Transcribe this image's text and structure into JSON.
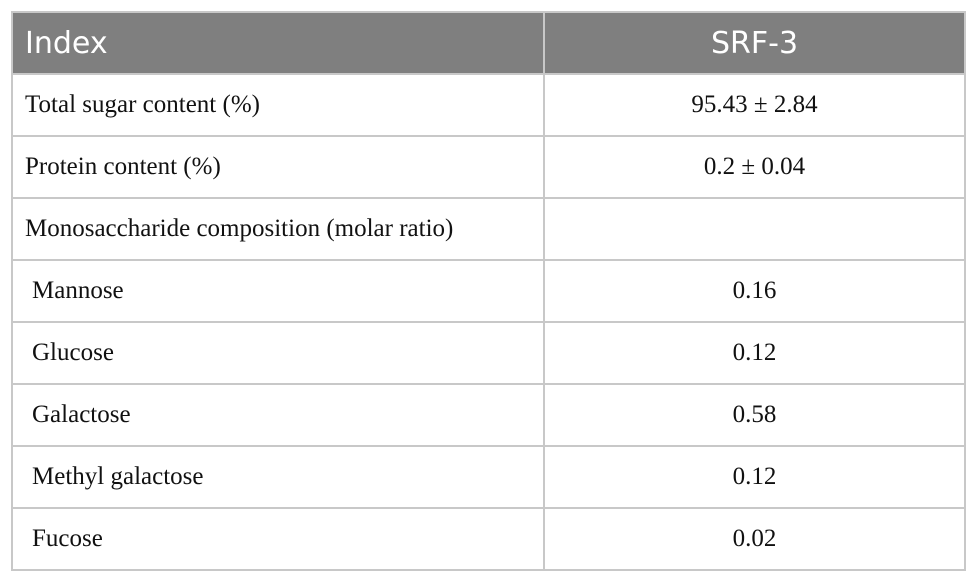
{
  "table": {
    "header": [
      "Index",
      "SRF-3"
    ],
    "rows": [
      [
        "Total sugar content (%)",
        "95.43 ± 2.84"
      ],
      [
        "Protein content (%)",
        "0.2 ± 0.04"
      ],
      [
        "Monosaccharide composition (molar ratio)",
        null
      ],
      [
        "Mannose",
        "0.16"
      ],
      [
        "Glucose",
        "0.12"
      ],
      [
        "Galactose",
        "0.58"
      ],
      [
        "Methyl galactose",
        "0.12"
      ],
      [
        "Fucose",
        "0.02"
      ]
    ]
  }
}
